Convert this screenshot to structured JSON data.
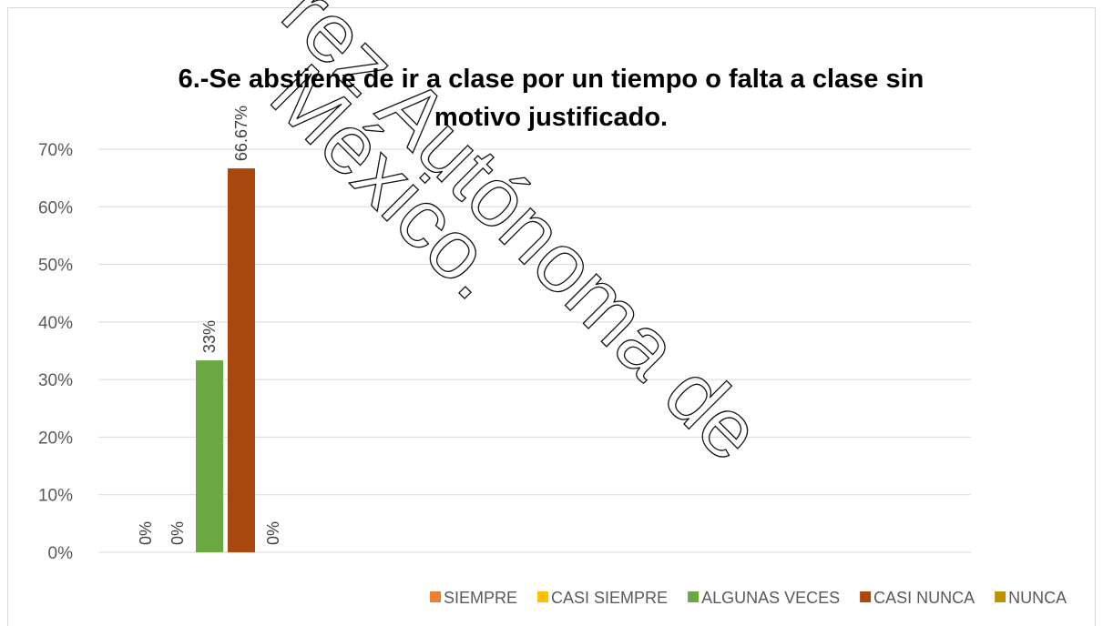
{
  "chart_data": {
    "type": "bar",
    "title": "6.-Se abstiene de ir a clase por un tiempo o falta a clase sin motivo justificado.",
    "categories": [
      null
    ],
    "series": [
      {
        "name": "SIEMPRE",
        "color": "#ed7d31",
        "values": [
          0
        ],
        "value_labels": [
          "0%"
        ]
      },
      {
        "name": "CASI SIEMPRE",
        "color": "#ffc000",
        "values": [
          0
        ],
        "value_labels": [
          "0%"
        ]
      },
      {
        "name": "ALGUNAS VECES",
        "color": "#6aa840",
        "values": [
          33.33
        ],
        "value_labels": [
          "33%"
        ]
      },
      {
        "name": "CASI NUNCA",
        "color": "#a8480f",
        "values": [
          66.67
        ],
        "value_labels": [
          "66.67%"
        ]
      },
      {
        "name": "NUNCA",
        "color": "#bf9000",
        "values": [
          0
        ],
        "value_labels": [
          "0%"
        ]
      }
    ],
    "ylim": [
      0,
      70
    ],
    "yticks": [
      {
        "value": 0,
        "label": "0%"
      },
      {
        "value": 10,
        "label": "10%"
      },
      {
        "value": 20,
        "label": "20%"
      },
      {
        "value": 30,
        "label": "30%"
      },
      {
        "value": 40,
        "label": "40%"
      },
      {
        "value": 50,
        "label": "50%"
      },
      {
        "value": 60,
        "label": "60%"
      },
      {
        "value": 70,
        "label": "70%"
      }
    ],
    "grid": true,
    "legend": "bottom",
    "watermark": [
      "rez Autónoma de",
      "México."
    ]
  }
}
